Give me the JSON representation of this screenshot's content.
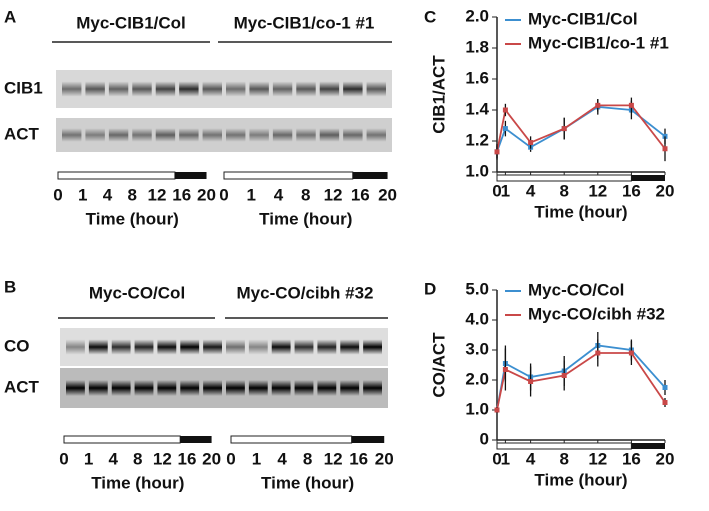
{
  "panels": {
    "a": {
      "letter": "A",
      "groups": [
        "Myc-CIB1/Col",
        "Myc-CIB1/co-1 #1"
      ],
      "rows": [
        "CIB1",
        "ACT"
      ]
    },
    "b": {
      "letter": "B",
      "groups": [
        "Myc-CO/Col",
        "Myc-CO/cibh #32"
      ],
      "rows": [
        "CO",
        "ACT"
      ]
    },
    "time_ticks": [
      0,
      1,
      4,
      8,
      12,
      16,
      20
    ],
    "time_label": "Time (hour)"
  },
  "chart_data": [
    {
      "type": "line",
      "letter": "C",
      "y_label": "CIB1/ACT",
      "x_label": "Time (hour)",
      "x": [
        0,
        1,
        4,
        8,
        12,
        16,
        20
      ],
      "xlim": [
        0,
        20
      ],
      "xticks": [
        0,
        1,
        4,
        8,
        12,
        16,
        20
      ],
      "ylim": [
        1,
        2
      ],
      "yticks": [
        {
          "value": 1,
          "label": "1.0"
        },
        {
          "value": 1.2,
          "label": "1.2"
        },
        {
          "value": 1.4,
          "label": "1.4"
        },
        {
          "value": 1.6,
          "label": "1.6"
        },
        {
          "value": 1.8,
          "label": "1.8"
        },
        {
          "value": 2,
          "label": "2.0"
        }
      ],
      "series": [
        {
          "name": "Myc-CIB1/Col",
          "color": "#3c8fd0",
          "values": [
            1.13,
            1.28,
            1.16,
            1.28,
            1.42,
            1.4,
            1.23
          ],
          "errors": [
            0.04,
            0.05,
            0.03,
            0.07,
            0.05,
            0.06,
            0.05
          ]
        },
        {
          "name": "Myc-CIB1/co-1 #1",
          "color": "#c94848",
          "values": [
            1.13,
            1.4,
            1.19,
            1.28,
            1.43,
            1.43,
            1.15
          ],
          "errors": [
            0.05,
            0.04,
            0.04,
            0.07,
            0.04,
            0.05,
            0.08
          ]
        }
      ]
    },
    {
      "type": "line",
      "letter": "D",
      "y_label": "CO/ACT",
      "x_label": "Time (hour)",
      "x": [
        0,
        1,
        4,
        8,
        12,
        16,
        20
      ],
      "xlim": [
        0,
        20
      ],
      "xticks": [
        0,
        1,
        4,
        8,
        12,
        16,
        20
      ],
      "ylim": [
        0,
        5
      ],
      "yticks": [
        0,
        {
          "value": 1,
          "label": "1.0"
        },
        {
          "value": 2,
          "label": "2.0"
        },
        {
          "value": 3,
          "label": "3.0"
        },
        {
          "value": 4,
          "label": "4.0"
        },
        {
          "value": 5,
          "label": "5.0"
        }
      ],
      "series": [
        {
          "name": "Myc-CO/Col",
          "color": "#3c8fd0",
          "values": [
            1,
            2.55,
            2.1,
            2.3,
            3.15,
            3,
            1.75
          ],
          "errors": [
            0.1,
            0.6,
            0.45,
            0.5,
            0.45,
            0.35,
            0.25
          ]
        },
        {
          "name": "Myc-CO/cibh #32",
          "color": "#c94848",
          "values": [
            1,
            2.35,
            1.95,
            2.15,
            2.9,
            2.9,
            1.25
          ],
          "errors": [
            0.1,
            0.7,
            0.5,
            0.5,
            0.45,
            0.4,
            0.15
          ]
        }
      ]
    }
  ]
}
